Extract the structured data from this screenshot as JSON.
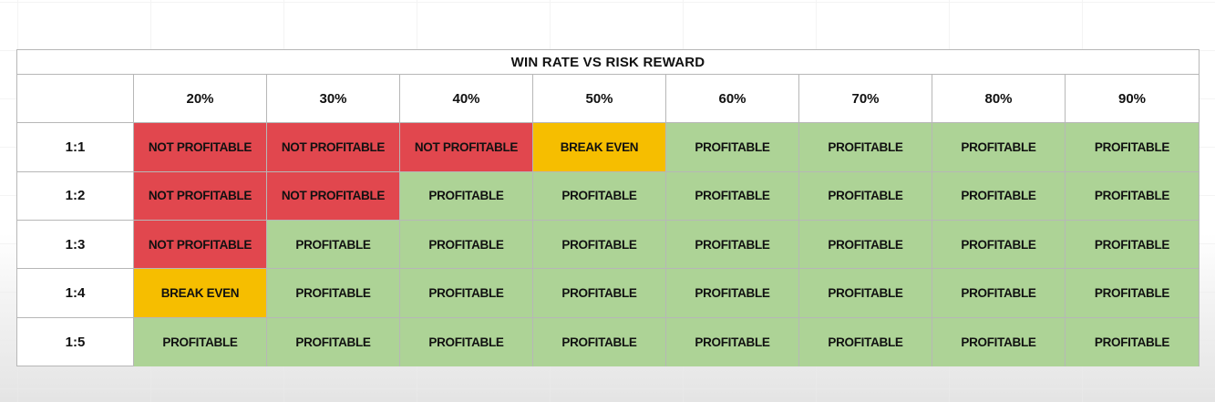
{
  "title": "WIN RATE VS RISK REWARD",
  "colors": {
    "not_profitable": "#E1474E",
    "break_even": "#F6BE00",
    "profitable": "#ADD396",
    "border": "#B7B7B7"
  },
  "win_rates": [
    "20%",
    "30%",
    "40%",
    "50%",
    "60%",
    "70%",
    "80%",
    "90%"
  ],
  "rows": [
    {
      "ratio": "1:1",
      "cells": [
        {
          "label": "NOT PROFITABLE",
          "status": "not_profitable"
        },
        {
          "label": "NOT PROFITABLE",
          "status": "not_profitable"
        },
        {
          "label": "NOT PROFITABLE",
          "status": "not_profitable"
        },
        {
          "label": "BREAK EVEN",
          "status": "break_even"
        },
        {
          "label": "PROFITABLE",
          "status": "profitable"
        },
        {
          "label": "PROFITABLE",
          "status": "profitable"
        },
        {
          "label": "PROFITABLE",
          "status": "profitable"
        },
        {
          "label": "PROFITABLE",
          "status": "profitable"
        }
      ]
    },
    {
      "ratio": "1:2",
      "cells": [
        {
          "label": "NOT PROFITABLE",
          "status": "not_profitable"
        },
        {
          "label": "NOT PROFITABLE",
          "status": "not_profitable"
        },
        {
          "label": "PROFITABLE",
          "status": "profitable"
        },
        {
          "label": "PROFITABLE",
          "status": "profitable"
        },
        {
          "label": "PROFITABLE",
          "status": "profitable"
        },
        {
          "label": "PROFITABLE",
          "status": "profitable"
        },
        {
          "label": "PROFITABLE",
          "status": "profitable"
        },
        {
          "label": "PROFITABLE",
          "status": "profitable"
        }
      ]
    },
    {
      "ratio": "1:3",
      "cells": [
        {
          "label": "NOT PROFITABLE",
          "status": "not_profitable"
        },
        {
          "label": "PROFITABLE",
          "status": "profitable"
        },
        {
          "label": "PROFITABLE",
          "status": "profitable"
        },
        {
          "label": "PROFITABLE",
          "status": "profitable"
        },
        {
          "label": "PROFITABLE",
          "status": "profitable"
        },
        {
          "label": "PROFITABLE",
          "status": "profitable"
        },
        {
          "label": "PROFITABLE",
          "status": "profitable"
        },
        {
          "label": "PROFITABLE",
          "status": "profitable"
        }
      ]
    },
    {
      "ratio": "1:4",
      "cells": [
        {
          "label": "BREAK EVEN",
          "status": "break_even"
        },
        {
          "label": "PROFITABLE",
          "status": "profitable"
        },
        {
          "label": "PROFITABLE",
          "status": "profitable"
        },
        {
          "label": "PROFITABLE",
          "status": "profitable"
        },
        {
          "label": "PROFITABLE",
          "status": "profitable"
        },
        {
          "label": "PROFITABLE",
          "status": "profitable"
        },
        {
          "label": "PROFITABLE",
          "status": "profitable"
        },
        {
          "label": "PROFITABLE",
          "status": "profitable"
        }
      ]
    },
    {
      "ratio": "1:5",
      "cells": [
        {
          "label": "PROFITABLE",
          "status": "profitable"
        },
        {
          "label": "PROFITABLE",
          "status": "profitable"
        },
        {
          "label": "PROFITABLE",
          "status": "profitable"
        },
        {
          "label": "PROFITABLE",
          "status": "profitable"
        },
        {
          "label": "PROFITABLE",
          "status": "profitable"
        },
        {
          "label": "PROFITABLE",
          "status": "profitable"
        },
        {
          "label": "PROFITABLE",
          "status": "profitable"
        },
        {
          "label": "PROFITABLE",
          "status": "profitable"
        }
      ]
    }
  ]
}
